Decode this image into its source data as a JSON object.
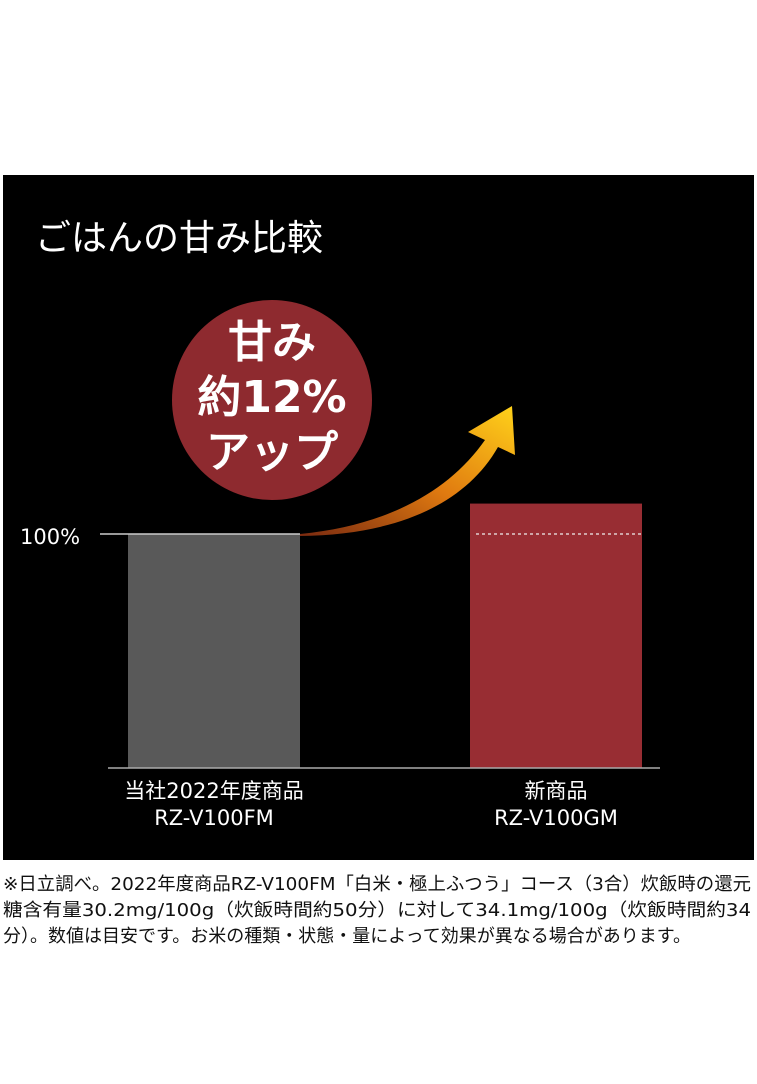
{
  "chart_data": {
    "type": "bar",
    "title": "ごはんの甘み比較",
    "categories": [
      [
        "当社2022年度商品",
        "RZ-V100FM"
      ],
      [
        "新商品",
        "RZ-V100GM"
      ]
    ],
    "values": [
      100,
      113
    ],
    "colors": [
      "#595959",
      "#982d33"
    ],
    "ylim": [
      0,
      120
    ],
    "yticks": [
      {
        "value": 100,
        "label": "100%"
      }
    ],
    "annotation": [
      "甘み",
      "約12%",
      "アップ"
    ],
    "footnote": [
      "※日立調べ。2022年度商品RZ-V100FM「白米・極上ふつう」コース（3合）炊飯時の還元",
      "糖含有量30.2mg/100g（炊飯時間約50分）に対して34.1mg/100g（炊飯時間約34",
      "分）。数値は目安です。お米の種類・状態・量によって効果が異なる場合があります。"
    ]
  }
}
